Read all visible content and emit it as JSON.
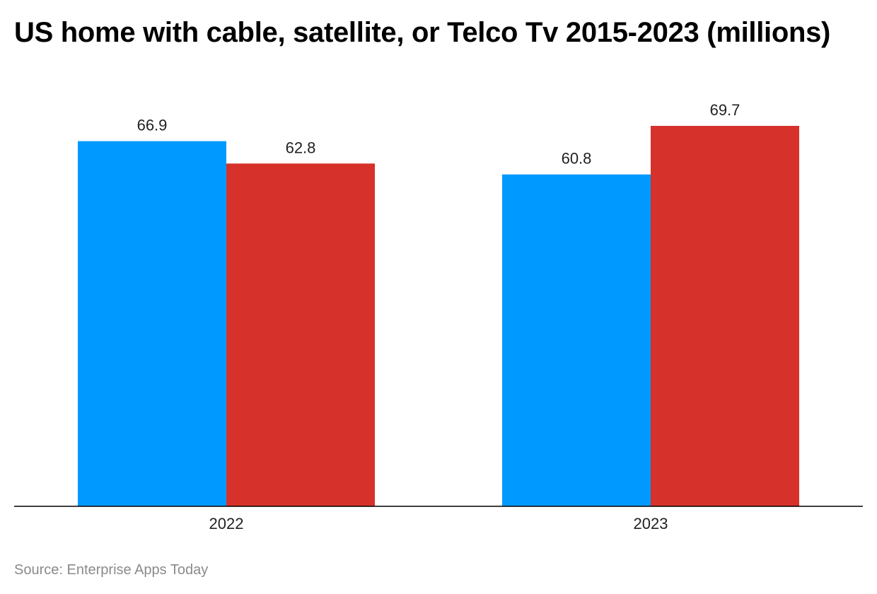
{
  "chart_data": {
    "type": "bar",
    "title": "US home with cable, satellite, or Telco Tv 2015-2023 (millions)",
    "categories": [
      "2022",
      "2023"
    ],
    "series": [
      {
        "values": [
          66.9,
          60.8
        ],
        "color": "#0099ff"
      },
      {
        "values": [
          62.8,
          69.7
        ],
        "color": "#d7312b"
      }
    ],
    "ylim": [
      0,
      69.7
    ],
    "grid": false,
    "legend": "none"
  },
  "source": "Source: Enterprise Apps Today"
}
